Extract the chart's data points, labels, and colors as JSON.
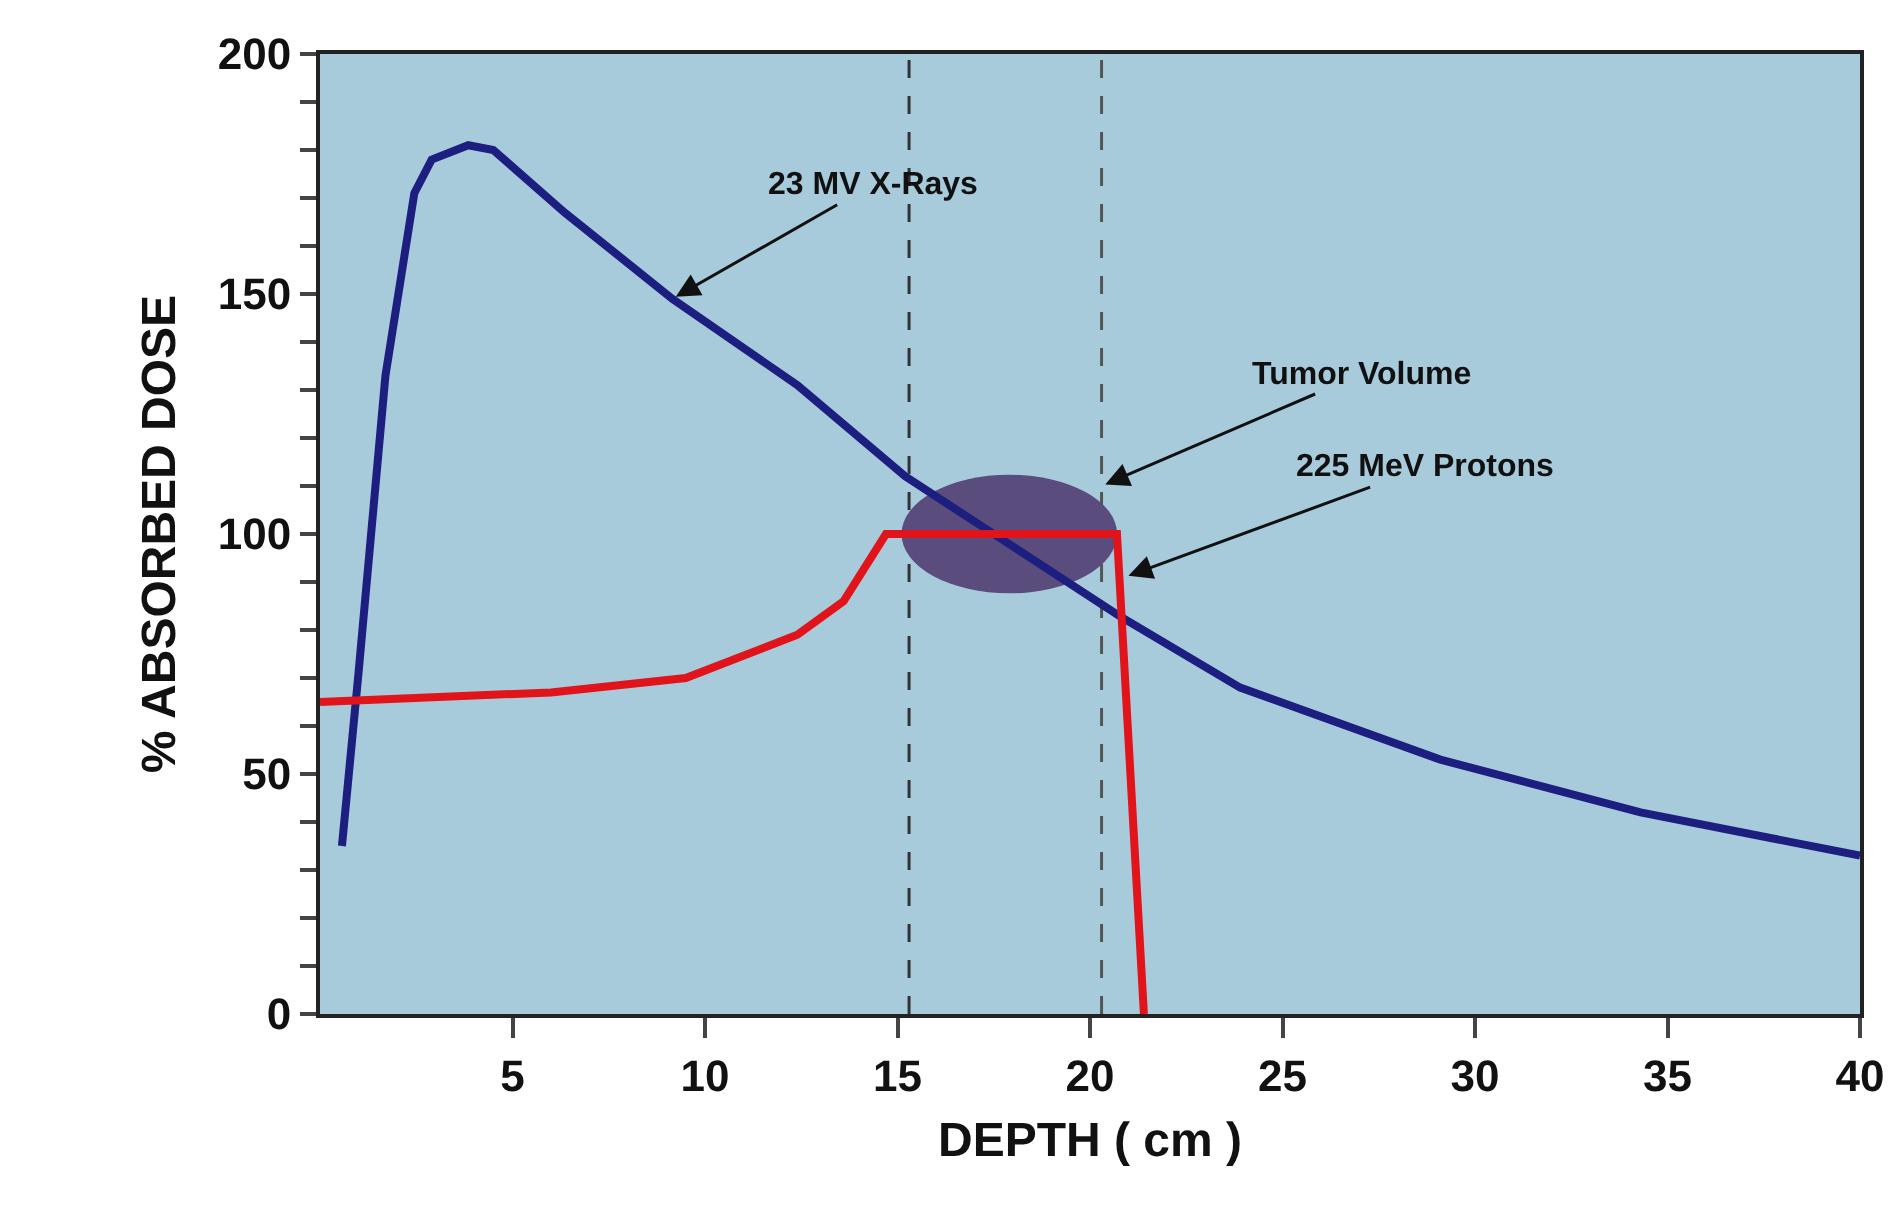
{
  "chart_data": {
    "type": "line",
    "xlabel": "DEPTH ( cm )",
    "ylabel": "% ABSORBED DOSE",
    "xlim": [
      0,
      40
    ],
    "xticks": [
      5,
      10,
      15,
      20,
      25,
      30,
      35,
      40
    ],
    "ylim": [
      0,
      200
    ],
    "yticks": [
      0,
      {
        "value": 10,
        "label": null
      },
      {
        "value": 20,
        "label": null
      },
      {
        "value": 30,
        "label": null
      },
      {
        "value": 40,
        "label": null
      },
      50,
      {
        "value": 60,
        "label": null
      },
      {
        "value": 70,
        "label": null
      },
      {
        "value": 80,
        "label": null
      },
      {
        "value": 90,
        "label": null
      },
      100,
      {
        "value": 110,
        "label": null
      },
      {
        "value": 120,
        "label": null
      },
      {
        "value": 130,
        "label": null
      },
      {
        "value": 140,
        "label": null
      },
      150,
      {
        "value": 160,
        "label": null
      },
      {
        "value": 170,
        "label": null
      },
      {
        "value": 180,
        "label": null
      },
      {
        "value": 190,
        "label": null
      },
      200
    ],
    "grid": false,
    "marker": "none",
    "line_style": "solid",
    "series": [
      {
        "color": "#1c1f80",
        "x": [
          0.57,
          1.0,
          1.7,
          2.45,
          2.9,
          3.85,
          4.5,
          6.35,
          9.15,
          12.4,
          15.2,
          17.5,
          20.75,
          23.9,
          29.1,
          34.3,
          40
        ],
        "values": [
          35,
          71,
          133,
          171,
          178,
          181,
          180,
          167,
          149,
          131,
          112,
          100,
          83,
          68,
          53,
          42,
          33
        ]
      },
      {
        "color": "#e0141a",
        "x": [
          0,
          6.0,
          9.5,
          12.4,
          13.6,
          14.7,
          20.7,
          21.4
        ],
        "values": [
          65,
          67,
          70,
          79,
          86,
          100,
          100,
          0
        ]
      }
    ],
    "ref_lines": [
      {
        "axis": "x",
        "value": 15.3,
        "color": "#333333",
        "line_style": "dashed"
      },
      {
        "axis": "x",
        "value": 20.3,
        "color": "#555555",
        "line_style": "dashed"
      }
    ],
    "annotations": [
      {
        "text": "23 MV X-Rays",
        "x": 9.15,
        "y": 149
      },
      {
        "text": "Tumor Volume",
        "x": 20.3,
        "y": 110
      },
      {
        "text": "225 MeV Protons",
        "x": 20.9,
        "y": 91
      }
    ]
  }
}
